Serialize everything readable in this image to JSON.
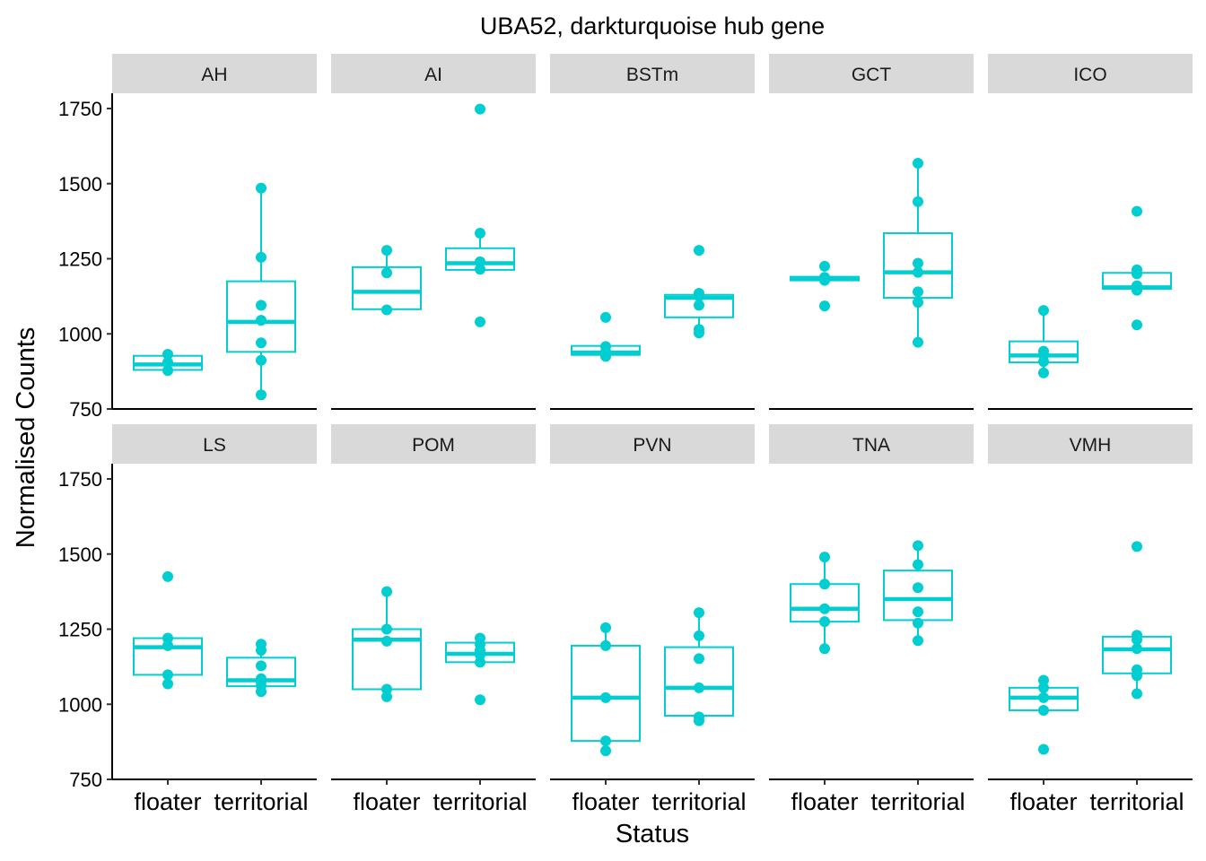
{
  "chart_data": {
    "type": "boxplot",
    "title": "UBA52, darkturquoise hub gene",
    "xlabel": "Status",
    "ylabel": "Normalised Counts",
    "categories": [
      "floater",
      "territorial"
    ],
    "ylim": [
      750,
      1800
    ],
    "yticks": [
      750,
      1000,
      1250,
      1500,
      1750
    ],
    "color": "#00CED1",
    "strip_color": "#D9D9D9",
    "facet_layout": "2 rows x 5 columns",
    "panels": [
      {
        "name": "AH",
        "floater": {
          "box": [
            880,
            898,
            927
          ],
          "points": [
            878,
            905,
            932
          ]
        },
        "territorial": {
          "box": [
            940,
            1040,
            1175
          ],
          "points": [
            797,
            912,
            970,
            1045,
            1095,
            1255,
            1485
          ]
        }
      },
      {
        "name": "AI",
        "floater": {
          "box": [
            1082,
            1140,
            1222
          ],
          "points": [
            1080,
            1203,
            1278
          ]
        },
        "territorial": {
          "box": [
            1213,
            1235,
            1285
          ],
          "points": [
            1040,
            1215,
            1240,
            1335,
            1748
          ]
        }
      },
      {
        "name": "BSTm",
        "floater": {
          "box": [
            930,
            938,
            960
          ],
          "points": [
            925,
            940,
            958,
            1055
          ]
        },
        "territorial": {
          "box": [
            1055,
            1120,
            1130
          ],
          "points": [
            1003,
            1015,
            1095,
            1125,
            1135,
            1278
          ]
        }
      },
      {
        "name": "GCT",
        "floater": {
          "box": [
            1178,
            1183,
            1190
          ],
          "points": [
            1093,
            1178,
            1188,
            1225
          ]
        },
        "territorial": {
          "box": [
            1120,
            1205,
            1335
          ],
          "points": [
            972,
            1105,
            1140,
            1205,
            1235,
            1440,
            1568
          ]
        }
      },
      {
        "name": "ICO",
        "floater": {
          "box": [
            905,
            928,
            975
          ],
          "points": [
            870,
            908,
            930,
            942,
            1078
          ]
        },
        "territorial": {
          "box": [
            1150,
            1155,
            1203
          ],
          "points": [
            1030,
            1145,
            1160,
            1200,
            1213,
            1408
          ]
        }
      },
      {
        "name": "LS",
        "floater": {
          "box": [
            1098,
            1190,
            1220
          ],
          "points": [
            1068,
            1098,
            1195,
            1220,
            1425
          ]
        },
        "territorial": {
          "box": [
            1060,
            1080,
            1155
          ],
          "points": [
            1042,
            1062,
            1075,
            1085,
            1128,
            1180,
            1200
          ]
        }
      },
      {
        "name": "POM",
        "floater": {
          "box": [
            1050,
            1215,
            1250
          ],
          "points": [
            1025,
            1050,
            1210,
            1250,
            1375
          ]
        },
        "territorial": {
          "box": [
            1140,
            1168,
            1205
          ],
          "points": [
            1015,
            1140,
            1165,
            1180,
            1200,
            1220
          ]
        }
      },
      {
        "name": "PVN",
        "floater": {
          "box": [
            878,
            1022,
            1195
          ],
          "points": [
            845,
            878,
            1022,
            1195,
            1255
          ]
        },
        "territorial": {
          "box": [
            962,
            1055,
            1190
          ],
          "points": [
            945,
            958,
            1055,
            1152,
            1228,
            1305
          ]
        }
      },
      {
        "name": "TNA",
        "floater": {
          "box": [
            1275,
            1318,
            1400
          ],
          "points": [
            1185,
            1275,
            1318,
            1400,
            1490
          ]
        },
        "territorial": {
          "box": [
            1280,
            1350,
            1445
          ],
          "points": [
            1212,
            1270,
            1308,
            1388,
            1465,
            1528
          ]
        }
      },
      {
        "name": "VMH",
        "floater": {
          "box": [
            980,
            1022,
            1055
          ],
          "points": [
            850,
            980,
            1022,
            1055,
            1080
          ]
        },
        "territorial": {
          "box": [
            1103,
            1183,
            1225
          ],
          "points": [
            1035,
            1095,
            1115,
            1185,
            1215,
            1230,
            1525
          ]
        }
      }
    ]
  }
}
